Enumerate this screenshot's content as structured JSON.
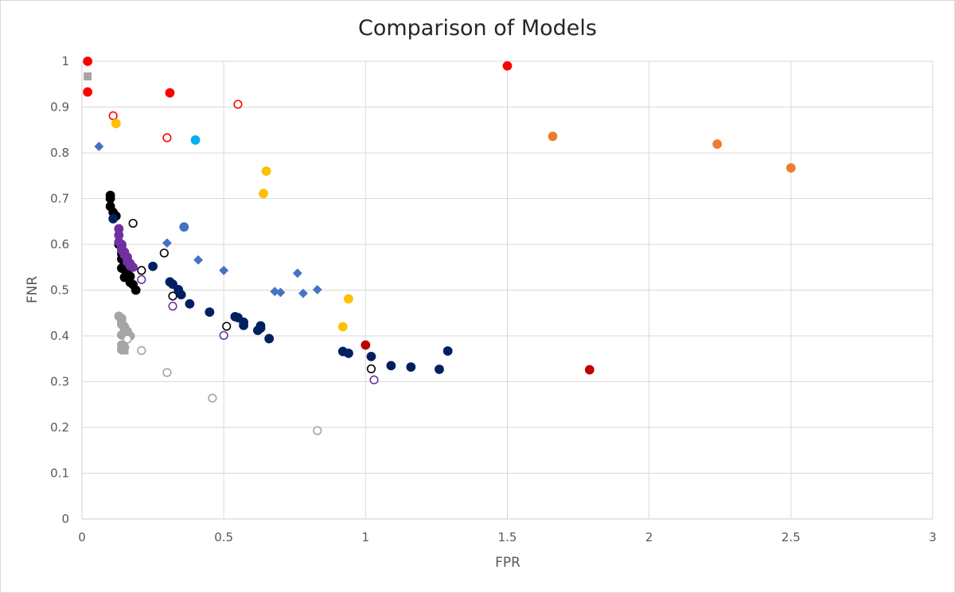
{
  "chart_data": {
    "type": "scatter",
    "title": "Comparison of Models",
    "xlabel": "FPR",
    "ylabel": "FNR",
    "xlim": [
      0,
      3
    ],
    "ylim": [
      0,
      1
    ],
    "x_ticks": [
      "0",
      "0.5",
      "1",
      "1.5",
      "2",
      "2.5",
      "3"
    ],
    "y_ticks": [
      "0",
      "0.1",
      "0.2",
      "0.3",
      "0.4",
      "0.5",
      "0.6",
      "0.7",
      "0.8",
      "0.9",
      "1"
    ],
    "grid": true,
    "legend": "none",
    "series": [
      {
        "color": "#ff0000",
        "marker": "circle",
        "filled": true,
        "points": [
          [
            0.02,
            1.0
          ],
          [
            0.02,
            0.933
          ],
          [
            0.31,
            0.931
          ],
          [
            1.5,
            0.99
          ]
        ]
      },
      {
        "color": "#ff0000",
        "marker": "circle",
        "filled": false,
        "points": [
          [
            0.11,
            0.881
          ],
          [
            0.3,
            0.833
          ],
          [
            0.55,
            0.906
          ]
        ]
      },
      {
        "color": "#a5a5a5",
        "marker": "square",
        "filled": true,
        "points": [
          [
            0.02,
            0.967
          ]
        ]
      },
      {
        "color": "#ffc000",
        "marker": "circle",
        "filled": true,
        "points": [
          [
            0.12,
            0.864
          ],
          [
            0.65,
            0.76
          ],
          [
            0.64,
            0.711
          ],
          [
            0.94,
            0.481
          ],
          [
            0.92,
            0.42
          ]
        ]
      },
      {
        "color": "#00b0f0",
        "marker": "circle",
        "filled": true,
        "points": [
          [
            0.4,
            0.828
          ]
        ]
      },
      {
        "color": "#4472c4",
        "marker": "diamond",
        "filled": true,
        "points": [
          [
            0.06,
            0.814
          ],
          [
            0.3,
            0.603
          ],
          [
            0.41,
            0.566
          ],
          [
            0.5,
            0.543
          ],
          [
            0.68,
            0.497
          ],
          [
            0.7,
            0.495
          ],
          [
            0.76,
            0.537
          ],
          [
            0.78,
            0.493
          ],
          [
            0.83,
            0.501
          ]
        ]
      },
      {
        "color": "#4472c4",
        "marker": "circle",
        "filled": true,
        "points": [
          [
            0.36,
            0.638
          ]
        ]
      },
      {
        "color": "#000000",
        "marker": "circle",
        "filled": true,
        "points": [
          [
            0.1,
            0.707
          ],
          [
            0.1,
            0.7
          ],
          [
            0.1,
            0.683
          ],
          [
            0.11,
            0.67
          ],
          [
            0.12,
            0.662
          ],
          [
            0.13,
            0.6
          ],
          [
            0.14,
            0.598
          ],
          [
            0.14,
            0.58
          ],
          [
            0.14,
            0.568
          ],
          [
            0.15,
            0.56
          ],
          [
            0.14,
            0.548
          ],
          [
            0.15,
            0.545
          ],
          [
            0.16,
            0.54
          ],
          [
            0.15,
            0.528
          ],
          [
            0.17,
            0.53
          ],
          [
            0.17,
            0.517
          ],
          [
            0.18,
            0.512
          ],
          [
            0.19,
            0.5
          ]
        ]
      },
      {
        "color": "#000000",
        "marker": "circle",
        "filled": false,
        "points": [
          [
            0.18,
            0.646
          ],
          [
            0.29,
            0.581
          ],
          [
            0.21,
            0.543
          ],
          [
            0.32,
            0.487
          ],
          [
            0.51,
            0.421
          ],
          [
            1.02,
            0.328
          ]
        ]
      },
      {
        "color": "#002060",
        "marker": "circle",
        "filled": true,
        "points": [
          [
            0.11,
            0.656
          ],
          [
            0.25,
            0.552
          ],
          [
            0.31,
            0.518
          ],
          [
            0.32,
            0.513
          ],
          [
            0.34,
            0.501
          ],
          [
            0.35,
            0.49
          ],
          [
            0.38,
            0.47
          ],
          [
            0.45,
            0.452
          ],
          [
            0.54,
            0.442
          ],
          [
            0.55,
            0.44
          ],
          [
            0.57,
            0.43
          ],
          [
            0.57,
            0.423
          ],
          [
            0.62,
            0.412
          ],
          [
            0.63,
            0.422
          ],
          [
            0.63,
            0.417
          ],
          [
            0.66,
            0.394
          ],
          [
            0.92,
            0.366
          ],
          [
            0.94,
            0.362
          ],
          [
            1.02,
            0.355
          ],
          [
            1.09,
            0.335
          ],
          [
            1.16,
            0.332
          ],
          [
            1.26,
            0.327
          ],
          [
            1.29,
            0.367
          ]
        ]
      },
      {
        "color": "#7030a0",
        "marker": "circle",
        "filled": true,
        "points": [
          [
            0.13,
            0.634
          ],
          [
            0.13,
            0.62
          ],
          [
            0.13,
            0.605
          ],
          [
            0.14,
            0.6
          ],
          [
            0.14,
            0.593
          ],
          [
            0.14,
            0.587
          ],
          [
            0.15,
            0.583
          ],
          [
            0.15,
            0.577
          ],
          [
            0.16,
            0.572
          ],
          [
            0.16,
            0.567
          ],
          [
            0.16,
            0.562
          ],
          [
            0.17,
            0.558
          ],
          [
            0.17,
            0.553
          ],
          [
            0.18,
            0.55
          ]
        ]
      },
      {
        "color": "#7030a0",
        "marker": "circle",
        "filled": false,
        "points": [
          [
            0.21,
            0.523
          ],
          [
            0.32,
            0.465
          ],
          [
            0.5,
            0.401
          ],
          [
            1.03,
            0.304
          ]
        ]
      },
      {
        "color": "#a5a5a5",
        "marker": "circle",
        "filled": true,
        "points": [
          [
            0.13,
            0.443
          ],
          [
            0.14,
            0.438
          ],
          [
            0.14,
            0.43
          ],
          [
            0.14,
            0.425
          ],
          [
            0.15,
            0.42
          ],
          [
            0.15,
            0.415
          ],
          [
            0.16,
            0.41
          ],
          [
            0.14,
            0.402
          ],
          [
            0.17,
            0.4
          ],
          [
            0.14,
            0.38
          ],
          [
            0.15,
            0.375
          ],
          [
            0.14,
            0.37
          ]
        ]
      },
      {
        "color": "#a5a5a5",
        "marker": "square",
        "filled": true,
        "points": [
          [
            0.15,
            0.368
          ]
        ]
      },
      {
        "color": "#a5a5a5",
        "marker": "circle",
        "filled": false,
        "points": [
          [
            0.16,
            0.393
          ],
          [
            0.21,
            0.368
          ],
          [
            0.3,
            0.32
          ],
          [
            0.46,
            0.264
          ],
          [
            0.83,
            0.193
          ]
        ]
      },
      {
        "color": "#c00000",
        "marker": "circle",
        "filled": true,
        "points": [
          [
            1.0,
            0.38
          ],
          [
            1.79,
            0.326
          ]
        ]
      },
      {
        "color": "#ed7d31",
        "marker": "circle",
        "filled": true,
        "points": [
          [
            1.66,
            0.836
          ],
          [
            2.24,
            0.819
          ],
          [
            2.5,
            0.767
          ]
        ]
      }
    ]
  }
}
